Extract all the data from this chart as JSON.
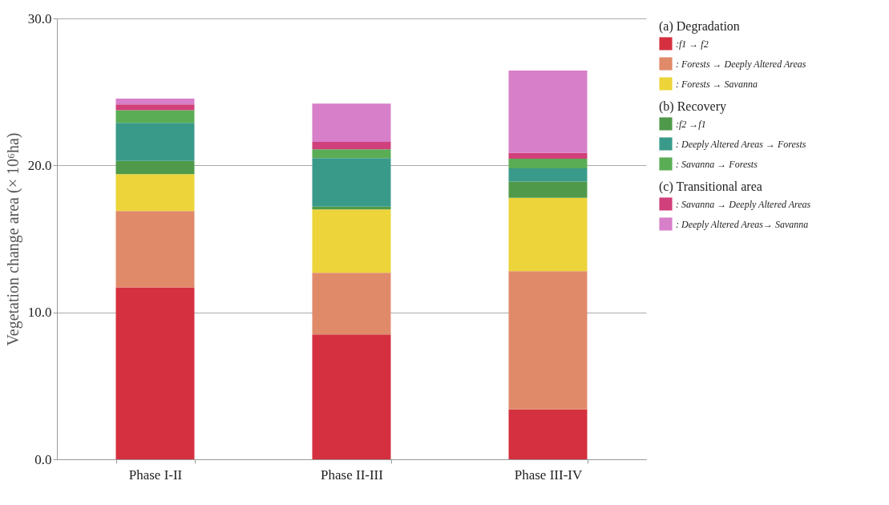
{
  "chart_data": {
    "type": "bar",
    "stacked": true,
    "ylabel": "Vegetation change  area (× 10⁶ha)",
    "categories": [
      "Phase I-II",
      "Phase II-III",
      "Phase III-IV"
    ],
    "series": [
      {
        "name": ":f1 → f2",
        "color": "#d5303f",
        "values": [
          11.7,
          8.5,
          3.4
        ]
      },
      {
        "name": ": Forests → Deeply Altered Areas",
        "color": "#e08a6a",
        "values": [
          5.2,
          4.2,
          9.4
        ]
      },
      {
        "name": ": Forests → Savanna",
        "color": "#ecd43a",
        "values": [
          2.5,
          4.3,
          5.0
        ]
      },
      {
        "name": ":f2 →f1",
        "color": "#4f9a4a",
        "values": [
          0.9,
          0.2,
          1.1
        ]
      },
      {
        "name": ": Deeply Altered Areas → Forests",
        "color": "#3a9a8a",
        "values": [
          2.6,
          3.3,
          0.9
        ]
      },
      {
        "name": ": Savanna → Forests",
        "color": "#5aad55",
        "values": [
          0.85,
          0.6,
          0.65
        ]
      },
      {
        "name": ": Savanna → Deeply Altered Areas",
        "color": "#d0407a",
        "values": [
          0.4,
          0.5,
          0.4
        ]
      },
      {
        "name": ": Deeply Altered Areas→ Savanna",
        "color": "#d77fc8",
        "values": [
          0.4,
          2.6,
          5.6
        ]
      }
    ],
    "annotations": [
      "(a) Degradation",
      "(b) Recovery",
      "(c) Transitional area"
    ],
    "ylim": [
      0,
      30
    ],
    "yticks": [
      {
        "value": 0,
        "label": "0.0"
      },
      {
        "value": 10,
        "label": "10.0"
      },
      {
        "value": 20,
        "label": "20.0"
      },
      {
        "value": 30,
        "label": "30.0"
      }
    ],
    "grid": "y",
    "legend": "right"
  }
}
